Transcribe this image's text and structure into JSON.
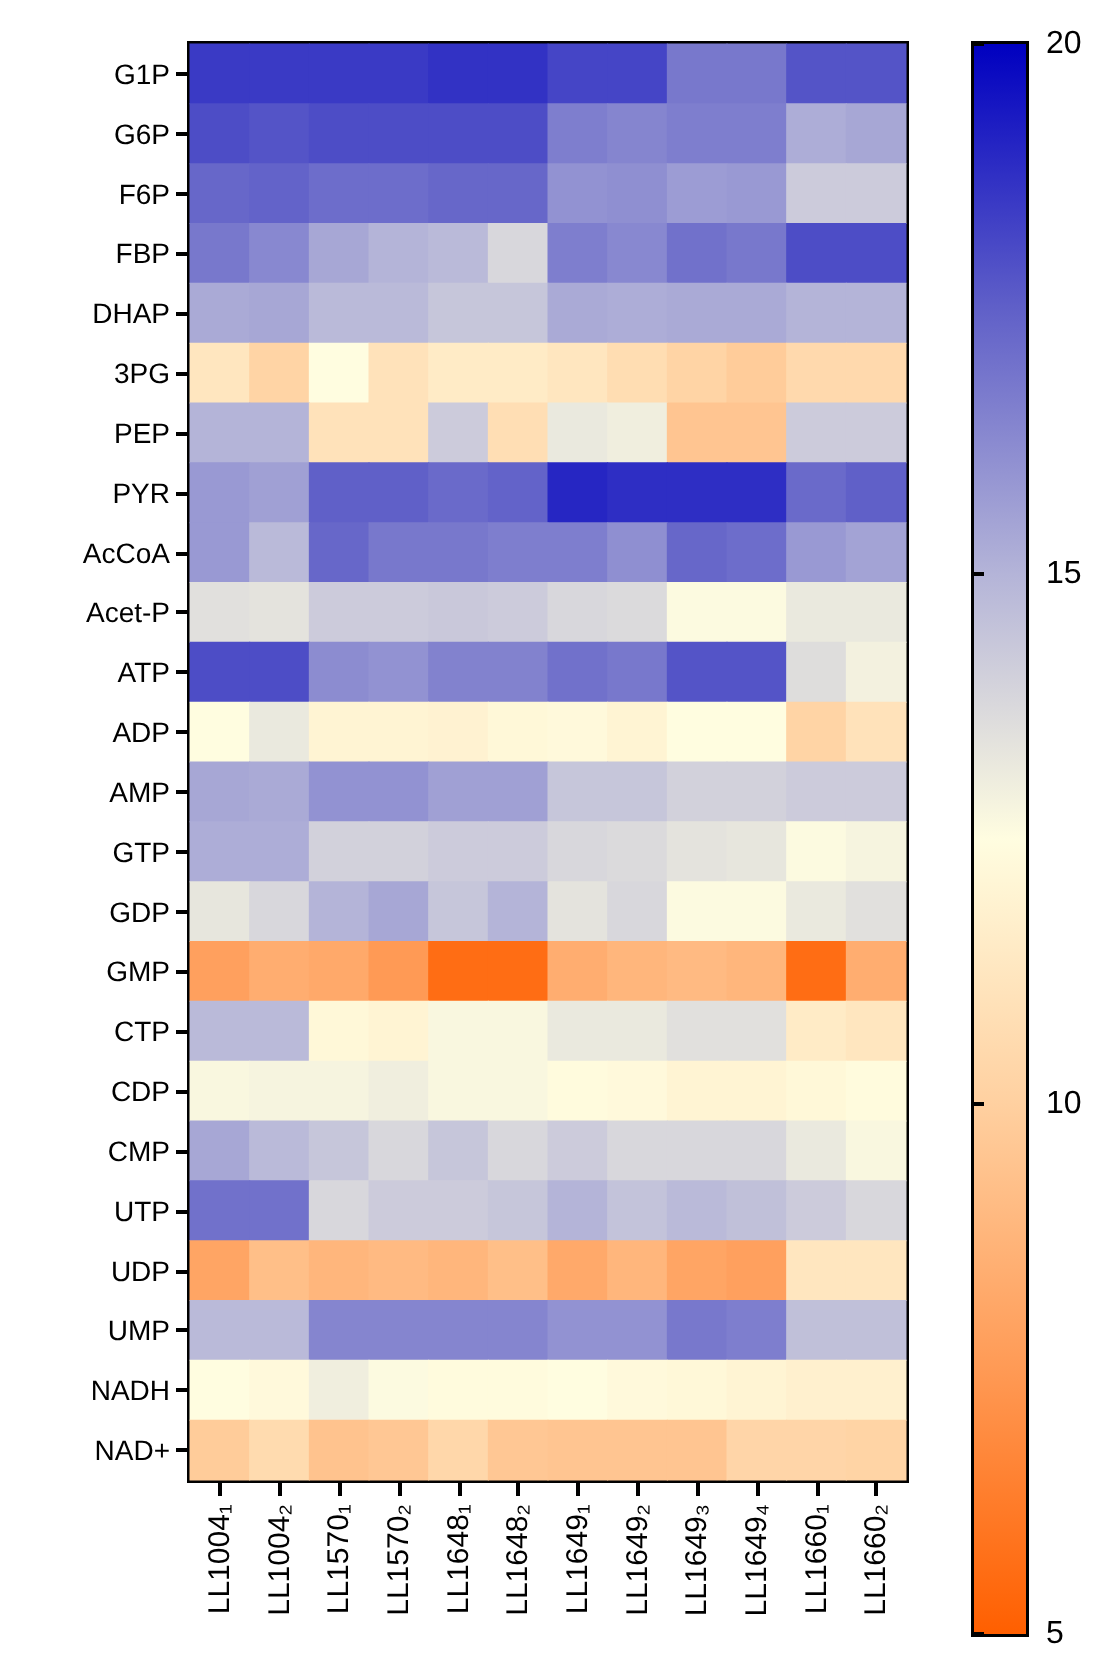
{
  "chart_data": {
    "type": "heatmap",
    "categories": [
      "LL1004₁",
      "LL1004₂",
      "LL1570₁",
      "LL1570₂",
      "LL1648₁",
      "LL1648₂",
      "LL1649₁",
      "LL1649₂",
      "LL1649₃",
      "LL1649₄",
      "LL1660₁",
      "LL1660₂"
    ],
    "y_categories": [
      "G1P",
      "G6P",
      "F6P",
      "FBP",
      "DHAP",
      "3PG",
      "PEP",
      "PYR",
      "AcCoA",
      "Acet-P",
      "ATP",
      "ADP",
      "AMP",
      "GTP",
      "GDP",
      "GMP",
      "CTP",
      "CDP",
      "CMP",
      "UTP",
      "UDP",
      "UMP",
      "NADH",
      "NAD+"
    ],
    "cells": [
      [
        18.5,
        18.5,
        18.5,
        18.5,
        18.7,
        18.7,
        18.2,
        18.2,
        16.8,
        16.8,
        17.8,
        17.8
      ],
      [
        18,
        17.8,
        18,
        18,
        18,
        18,
        16.6,
        16.4,
        16.6,
        16.6,
        15.2,
        15.4
      ],
      [
        17.3,
        17.4,
        17.1,
        17.1,
        17.3,
        17.3,
        16,
        16.1,
        15.7,
        15.8,
        14.2,
        14.2
      ],
      [
        16.8,
        16.3,
        15.4,
        15,
        14.8,
        13.8,
        16.6,
        16.3,
        17,
        16.8,
        18,
        18
      ],
      [
        15.3,
        15.4,
        14.8,
        14.8,
        14.4,
        14.4,
        15.3,
        15.2,
        15.3,
        15.3,
        15,
        15
      ],
      [
        11.2,
        10.2,
        12.5,
        11,
        11.5,
        11.5,
        11.2,
        10.7,
        10.2,
        9.8,
        10.5,
        10.5
      ],
      [
        15,
        15,
        11,
        11,
        14.2,
        10.8,
        13.2,
        13,
        9.5,
        9.5,
        14.2,
        14.2
      ],
      [
        15.8,
        15.6,
        17.5,
        17.5,
        17.2,
        17.4,
        19,
        18.8,
        18.8,
        18.8,
        17.2,
        17.5
      ],
      [
        15.8,
        14.8,
        17.3,
        16.8,
        16.8,
        16.6,
        16.6,
        16.1,
        17.3,
        17.1,
        15.8,
        15.5
      ],
      [
        13.5,
        13.4,
        14.2,
        14.2,
        14.3,
        14.2,
        13.8,
        13.7,
        12.6,
        12.6,
        13.2,
        13.2
      ],
      [
        18,
        18,
        16.2,
        16,
        16.5,
        16.5,
        17,
        16.8,
        17.8,
        17.8,
        13.6,
        12.9
      ],
      [
        12.5,
        13.2,
        12,
        12,
        11.9,
        12.2,
        12.3,
        12,
        12.5,
        12.5,
        10.2,
        11
      ],
      [
        15.4,
        15.3,
        16,
        16,
        15.6,
        15.6,
        14.4,
        14.4,
        14,
        14,
        14.2,
        14.2
      ],
      [
        15.2,
        15.2,
        14,
        14,
        14.2,
        14.2,
        13.8,
        13.7,
        13.4,
        13.3,
        12.6,
        12.8
      ],
      [
        13.3,
        13.8,
        15,
        15.4,
        14.4,
        15,
        13.4,
        13.8,
        12.6,
        12.6,
        13.2,
        13.5
      ],
      [
        7.8,
        8.4,
        8.2,
        7.5,
        5.6,
        5.6,
        8.4,
        8.8,
        9,
        8.8,
        5.6,
        8.4
      ],
      [
        14.8,
        14.8,
        12.2,
        12,
        12.7,
        12.7,
        13.2,
        13.2,
        13.5,
        13.5,
        11.5,
        11.2
      ],
      [
        12.7,
        12.8,
        12.8,
        13,
        12.7,
        12.7,
        12.4,
        12.3,
        12,
        12,
        12.2,
        12.4
      ],
      [
        15.4,
        14.8,
        14.4,
        13.8,
        14.4,
        13.8,
        14.2,
        13.8,
        13.8,
        13.8,
        13.2,
        12.7
      ],
      [
        17,
        17,
        13.8,
        14.2,
        14.2,
        14.4,
        15,
        14.5,
        14.8,
        14.6,
        14.2,
        13.8
      ],
      [
        8,
        9.2,
        8.8,
        9,
        8.8,
        9.2,
        8.2,
        8.8,
        8,
        7.8,
        11.2,
        11.2
      ],
      [
        14.8,
        14.8,
        16.4,
        16.4,
        16.4,
        16.4,
        16,
        16,
        16.8,
        16.6,
        14.6,
        14.6
      ],
      [
        12.5,
        12.3,
        13,
        12.6,
        12.4,
        12.4,
        12.5,
        12.3,
        12.2,
        12,
        11.8,
        11.8
      ],
      [
        9.8,
        10.6,
        9.4,
        9.6,
        10.4,
        9.6,
        9.5,
        9.5,
        9.5,
        10.3,
        10.3,
        10.2
      ]
    ],
    "clim": [
      5,
      20
    ],
    "cticks": [
      5,
      10,
      15,
      20
    ]
  }
}
